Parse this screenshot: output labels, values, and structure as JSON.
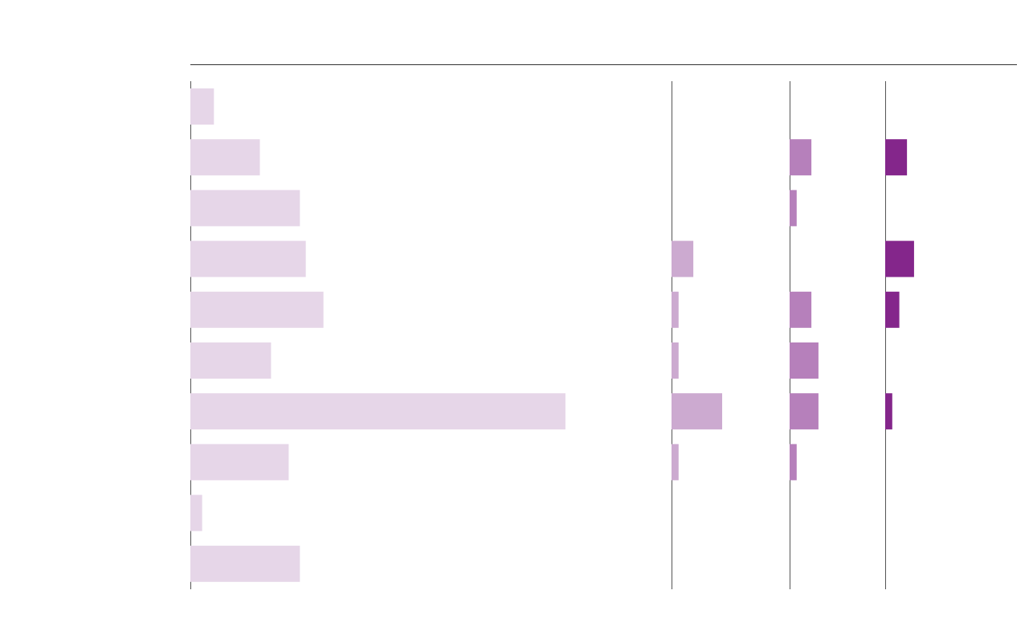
{
  "chart_data": {
    "type": "bar",
    "orientation": "horizontal",
    "layout": "small-multiples",
    "title": "",
    "xlabel": "",
    "ylabel": "",
    "grid": false,
    "legend": "none",
    "row_count": 10,
    "panels": [
      {
        "color": "#e6d6e8",
        "values": [
          4.0,
          11.8,
          18.6,
          19.6,
          22.6,
          13.7,
          63.7,
          16.7,
          2.0,
          18.6
        ]
      },
      {
        "color": "#ccaad0",
        "values": [
          0,
          0,
          0,
          3.7,
          1.2,
          1.2,
          8.6,
          1.2,
          0,
          0
        ]
      },
      {
        "color": "#b680bb",
        "values": [
          0,
          3.7,
          1.2,
          0,
          3.7,
          4.9,
          4.9,
          1.2,
          0,
          0
        ]
      },
      {
        "color": "#84268b",
        "values": [
          0,
          3.7,
          0,
          4.9,
          2.4,
          0,
          1.2,
          0,
          0,
          0
        ]
      }
    ]
  }
}
